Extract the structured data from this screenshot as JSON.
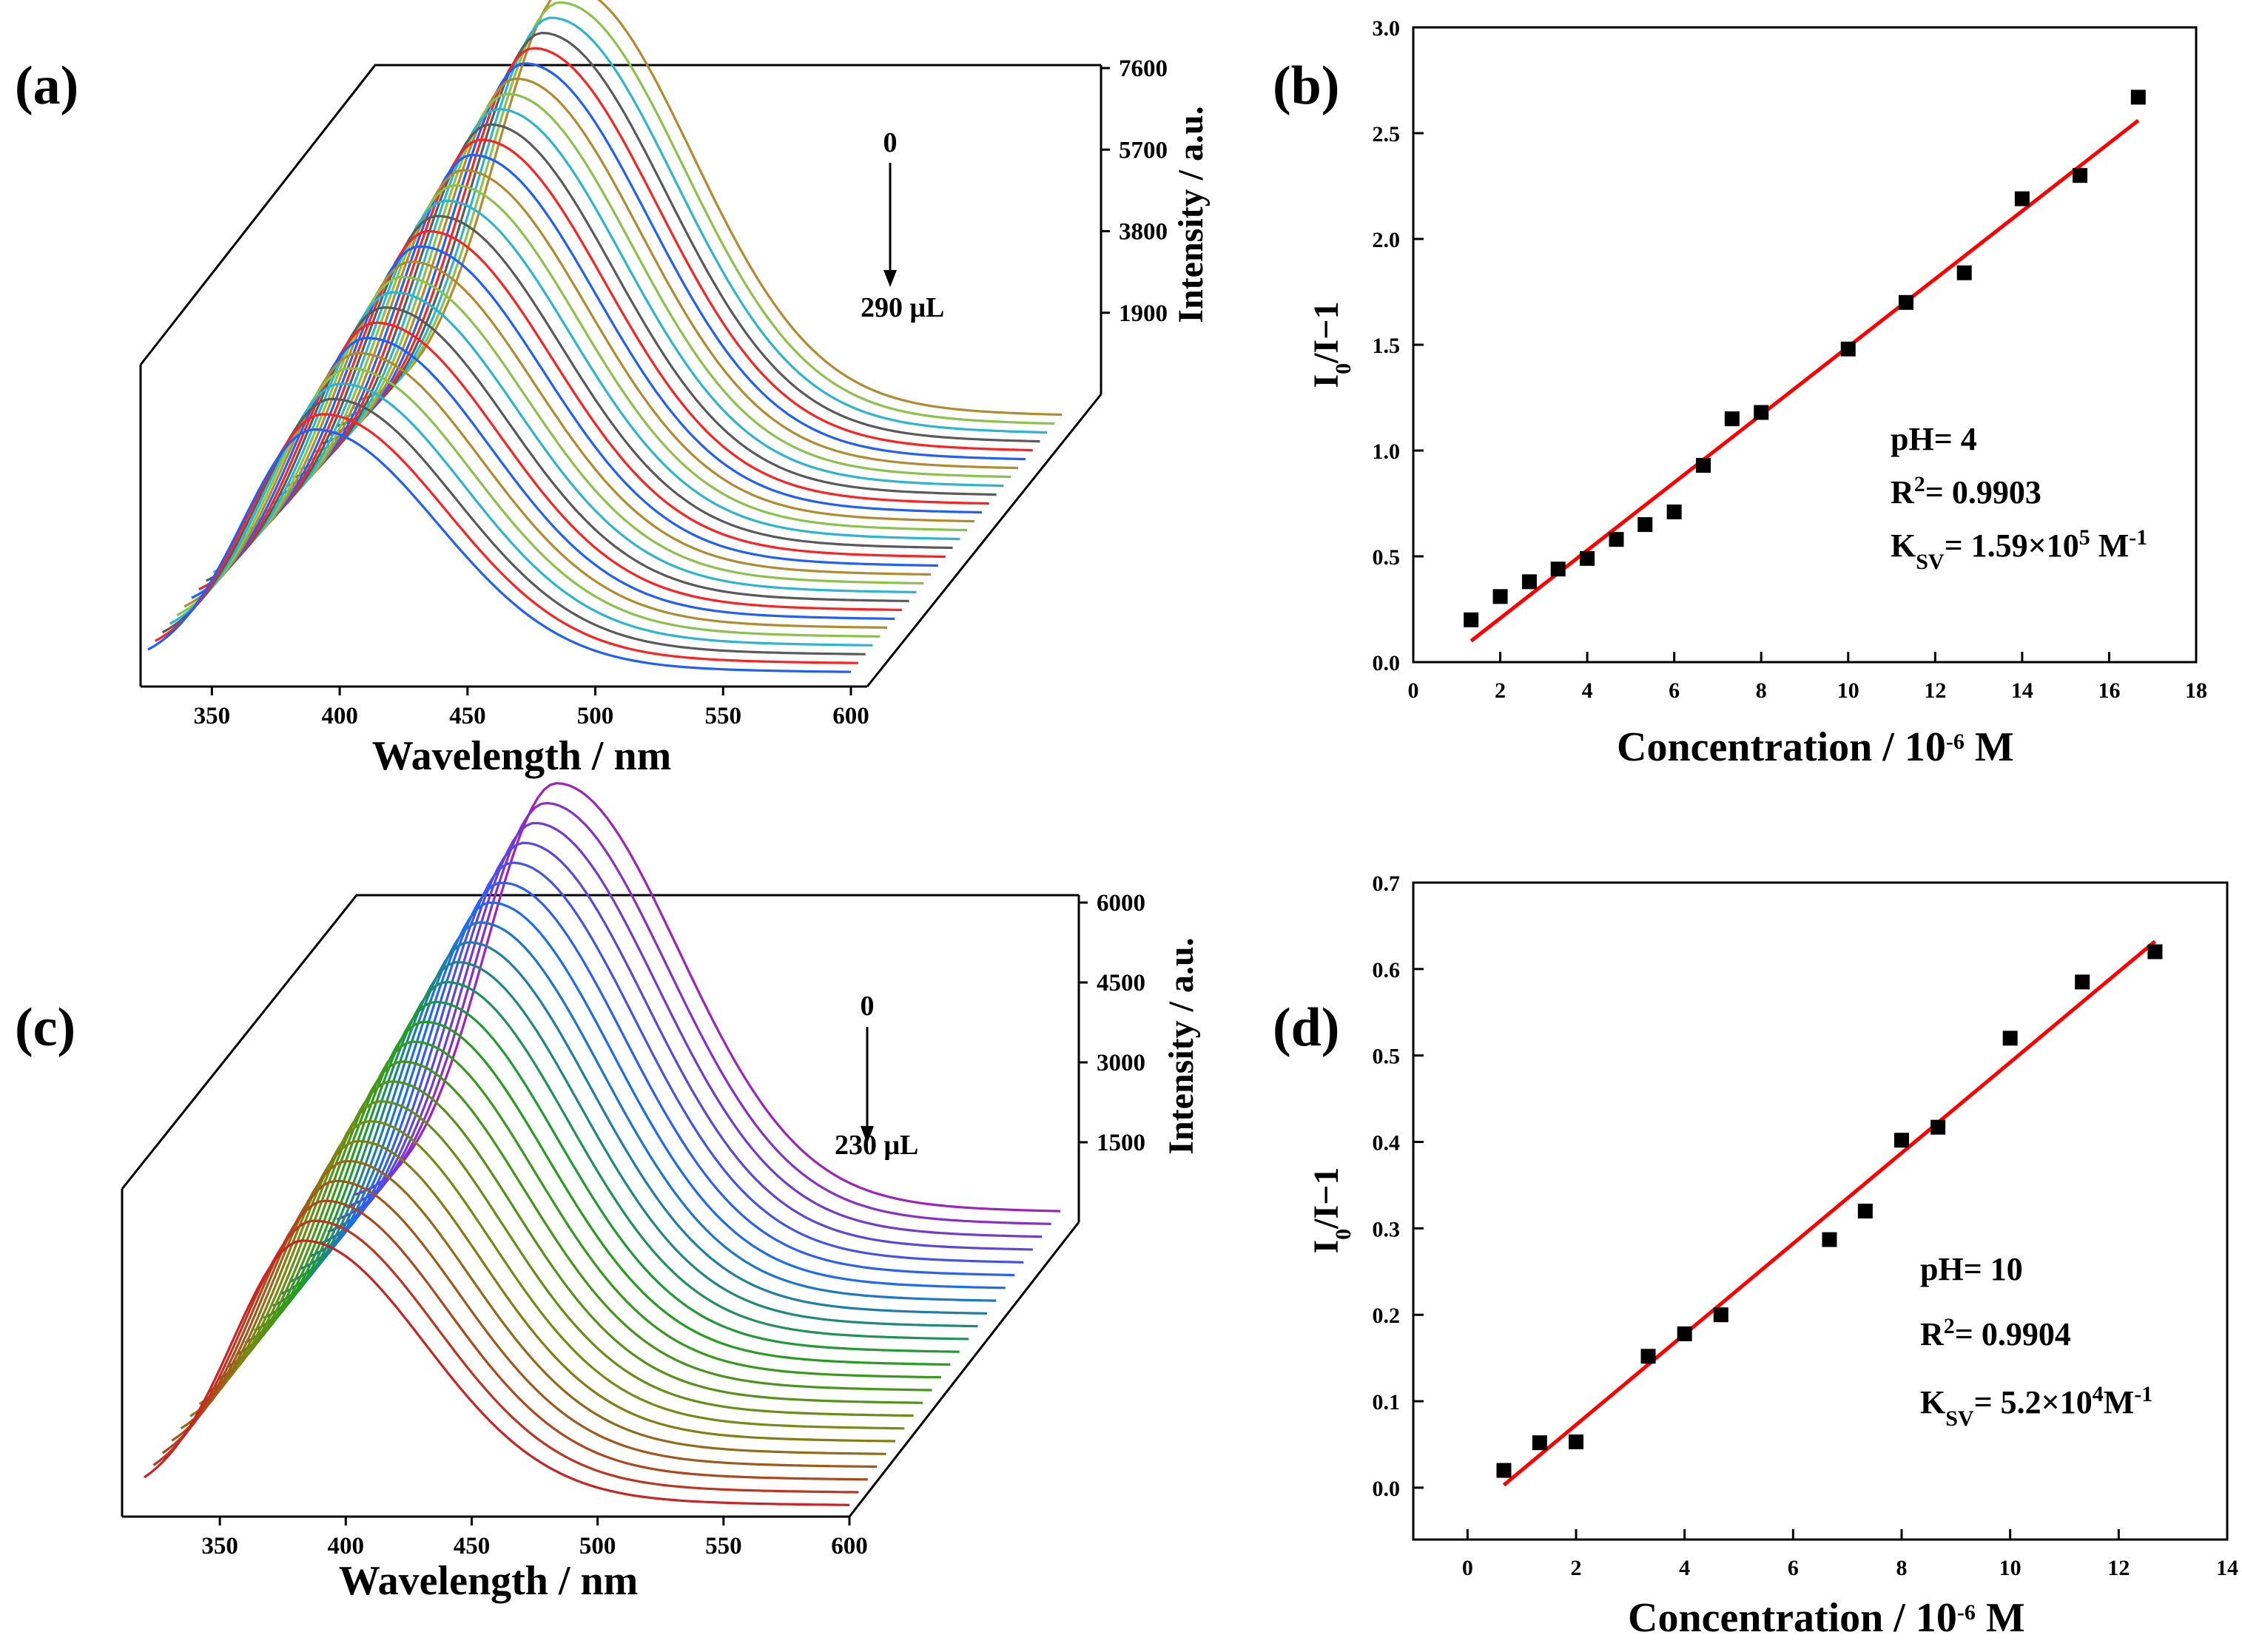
{
  "panels": {
    "a": {
      "label": "(a)",
      "x_label": "Wavelength / nm",
      "y_label": "Intensity / a.u.",
      "arrow_start": "0",
      "arrow_end": "290 μL",
      "accent_colors": [
        "#1f5fff",
        "#ff2020",
        "#5a5a5a",
        "#2bb5d1",
        "#8bc34a",
        "#b48a2e"
      ]
    },
    "c": {
      "label": "(c)",
      "x_label": "Wavelength / nm",
      "y_label": "Intensity / a.u.",
      "arrow_start": "0",
      "arrow_end": "230 μL",
      "accent_colors": [
        "#cc2222",
        "#7a8a10",
        "#1ea01e",
        "#1a6aff",
        "#a020c0"
      ]
    },
    "b": {
      "label": "(b)",
      "x_label_main": "Concentration / 10",
      "x_label_exp": "-6",
      "x_label_unit": " M",
      "y_label_main": "I",
      "y_label_sub": "0",
      "y_label_rest": "/I−1",
      "note_ph": "pH= 4",
      "note_r2_a": "R",
      "note_r2_sup": "2",
      "note_r2_b": "= 0.9903",
      "note_k_a": "K",
      "note_k_sub": "SV",
      "note_k_b": "= 1.59×10",
      "note_k_sup": "5",
      "note_k_c": " M",
      "note_k_sup2": "-1",
      "marker_color": "#000000",
      "fit_color": "#ff0000"
    },
    "d": {
      "label": "(d)",
      "x_label_main": "Concentration / 10",
      "x_label_exp": "-6",
      "x_label_unit": " M",
      "y_label_main": "I",
      "y_label_sub": "0",
      "y_label_rest": "/I−1",
      "note_ph": "pH= 10",
      "note_r2_a": "R",
      "note_r2_sup": "2",
      "note_r2_b": "= 0.9904",
      "note_k_a": "K",
      "note_k_sub": "SV",
      "note_k_b": "= 5.2×10",
      "note_k_sup": "4",
      "note_k_c": "M",
      "note_k_sup2": "-1",
      "marker_color": "#000000",
      "fit_color": "#ff0000"
    }
  },
  "chart_data": [
    {
      "id": "a",
      "type": "line",
      "title": "",
      "xlabel": "Wavelength / nm",
      "ylabel": "Intensity / a.u.",
      "x_ticks": [
        "350",
        "400",
        "450",
        "500",
        "550",
        "600"
      ],
      "xlim": [
        325,
        600
      ],
      "z_ticks": [
        "1900",
        "3800",
        "5700",
        "7600"
      ],
      "zlim": [
        0,
        7600
      ],
      "series_count": 30,
      "peak_nm_first": 390,
      "peak_nm_last": 407,
      "peak_intensity_first": 4300,
      "peak_intensity_last": 7600,
      "annotation": "0 → 290 μL"
    },
    {
      "id": "b",
      "type": "scatter",
      "title": "",
      "xlabel": "Concentration / 10-6 M",
      "ylabel": "I0/I−1",
      "xlim": [
        0,
        18
      ],
      "ylim": [
        0,
        3.0
      ],
      "x_ticks": [
        "0",
        "2",
        "4",
        "6",
        "8",
        "10",
        "12",
        "14",
        "16",
        "18"
      ],
      "y_ticks": [
        "0.0",
        "0.5",
        "1.0",
        "1.5",
        "2.0",
        "2.5",
        "3.0"
      ],
      "x": [
        1.33,
        2.0,
        2.67,
        3.33,
        4.0,
        4.67,
        5.33,
        6.0,
        6.67,
        7.33,
        8.0,
        10.0,
        11.33,
        12.67,
        14.0,
        15.33,
        16.67
      ],
      "y": [
        0.2,
        0.31,
        0.38,
        0.44,
        0.49,
        0.58,
        0.65,
        0.71,
        0.93,
        1.15,
        1.18,
        1.48,
        1.7,
        1.84,
        2.19,
        2.3,
        2.67
      ],
      "fit": {
        "x": [
          1.33,
          16.67
        ],
        "y": [
          0.1,
          2.56
        ]
      }
    },
    {
      "id": "c",
      "type": "line",
      "title": "",
      "xlabel": "Wavelength / nm",
      "ylabel": "Intensity / a.u.",
      "x_ticks": [
        "350",
        "400",
        "450",
        "500",
        "550",
        "600"
      ],
      "xlim": [
        320,
        600
      ],
      "z_ticks": [
        "1500",
        "3000",
        "4500",
        "6000"
      ],
      "zlim": [
        0,
        6000
      ],
      "series_count": 24,
      "peak_nm_first": 383,
      "peak_nm_last": 400,
      "peak_intensity_first": 3700,
      "peak_intensity_last": 6000,
      "annotation": "0 → 230 μL"
    },
    {
      "id": "d",
      "type": "scatter",
      "title": "",
      "xlabel": "Concentration / 10-6 M",
      "ylabel": "I0/I−1",
      "xlim": [
        -1,
        14
      ],
      "ylim": [
        -0.06,
        0.7
      ],
      "x_ticks": [
        "0",
        "2",
        "4",
        "6",
        "8",
        "10",
        "12",
        "14"
      ],
      "y_ticks": [
        "0.0",
        "0.1",
        "0.2",
        "0.3",
        "0.4",
        "0.5",
        "0.6",
        "0.7"
      ],
      "x": [
        0.67,
        1.33,
        2.0,
        3.33,
        4.0,
        4.67,
        6.67,
        7.33,
        8.0,
        8.67,
        10.0,
        11.33,
        12.67
      ],
      "y": [
        0.02,
        0.052,
        0.053,
        0.152,
        0.178,
        0.2,
        0.287,
        0.32,
        0.402,
        0.417,
        0.52,
        0.585,
        0.62
      ],
      "fit": {
        "x": [
          0.67,
          12.67
        ],
        "y": [
          0.003,
          0.632
        ]
      }
    }
  ]
}
